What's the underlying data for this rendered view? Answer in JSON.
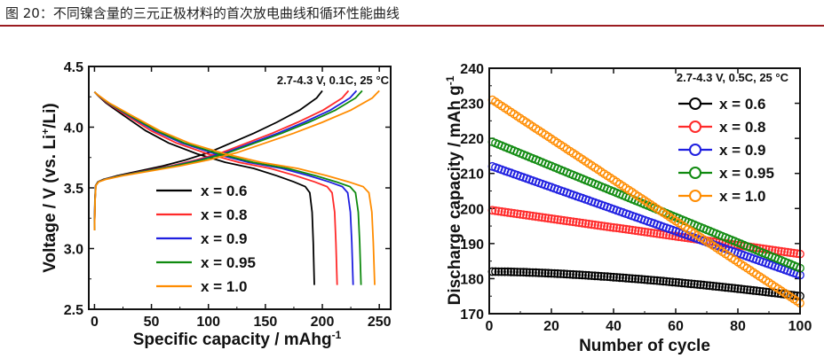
{
  "figure_title": "图 20：不同镍含量的三元正极材料的首次放电曲线和循环性能曲线",
  "chart_data": [
    {
      "type": "line",
      "title": "",
      "annotation": "2.7-4.3 V,  0.1C, 25 °C",
      "xlabel": "Specific capacity / mAhg",
      "xlabel_sup": "-1",
      "ylabel": "Voltage / V (vs. Li",
      "ylabel_sup": "+",
      "ylabel_end": "/Li)",
      "xlim": [
        -5,
        260
      ],
      "ylim": [
        2.5,
        4.5
      ],
      "xticks": [
        0,
        50,
        100,
        150,
        200,
        250
      ],
      "xtick_labels": [
        "0",
        "50",
        "100",
        "150",
        "200",
        "250"
      ],
      "yticks": [
        2.5,
        3.0,
        3.5,
        4.0,
        4.5
      ],
      "ytick_labels": [
        "2.5",
        "3.0",
        "3.5",
        "4.0",
        "4.5"
      ],
      "legend_position": "lower-left",
      "series": [
        {
          "name": "x = 0.6",
          "color": "#000000",
          "charge_capacity": 200,
          "discharge_capacity": 193
        },
        {
          "name": "x = 0.8",
          "color": "#ff2a2a",
          "charge_capacity": 223,
          "discharge_capacity": 213
        },
        {
          "name": "x = 0.9",
          "color": "#1f1fe0",
          "charge_capacity": 230,
          "discharge_capacity": 227
        },
        {
          "name": "x = 0.95",
          "color": "#0f8a0f",
          "charge_capacity": 235,
          "discharge_capacity": 234
        },
        {
          "name": "x = 1.0",
          "color": "#ff8c00",
          "charge_capacity": 250,
          "discharge_capacity": 246
        }
      ]
    },
    {
      "type": "scatter",
      "title": "",
      "annotation": "2.7-4.3 V,  0.5C, 25 °C",
      "xlabel": "Number of cycle",
      "ylabel": "Discharge capacity / mAh g",
      "ylabel_sup": "-1",
      "xlim": [
        0,
        100
      ],
      "ylim": [
        170,
        240
      ],
      "xticks": [
        0,
        20,
        40,
        60,
        80,
        100
      ],
      "xtick_labels": [
        "0",
        "20",
        "40",
        "60",
        "80",
        "100"
      ],
      "yticks": [
        170,
        180,
        190,
        200,
        210,
        220,
        230,
        240
      ],
      "ytick_labels": [
        "170",
        "180",
        "190",
        "200",
        "210",
        "220",
        "230",
        "240"
      ],
      "legend_position": "top-right",
      "series": [
        {
          "name": "x = 0.6",
          "color": "#000000",
          "start": 182,
          "end": 175
        },
        {
          "name": "x = 0.8",
          "color": "#ff2a2a",
          "start": 199.5,
          "end": 187
        },
        {
          "name": "x = 0.9",
          "color": "#1f1fe0",
          "start": 212,
          "end": 181
        },
        {
          "name": "x = 0.95",
          "color": "#0f8a0f",
          "start": 219,
          "end": 183
        },
        {
          "name": "x = 1.0",
          "color": "#ff8c00",
          "start": 231,
          "end": 173
        }
      ]
    }
  ]
}
